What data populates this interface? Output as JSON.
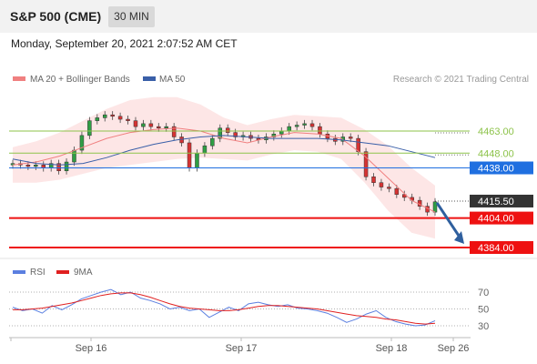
{
  "header": {
    "title": "S&P 500 (CME)",
    "timeframe": "30 MIN",
    "datetime": "Monday, September 20, 2021 2:07:52 AM CET"
  },
  "legend": {
    "ma20_label": "MA 20 + Bollinger Bands",
    "ma50_label": "MA 50",
    "credit": "Research © 2021 Trading Central",
    "rsi_label": "RSI",
    "ma9_label": "9MA"
  },
  "colors": {
    "ma20": "#f08080",
    "ma50": "#3a5fa8",
    "bollinger_fill": "#fde3e3",
    "resistance_green": "#8dc34a",
    "pivot_blue": "#1f6fe0",
    "support_red": "#ee1111",
    "last_price": "#333333",
    "arrow": "#2f5f9e",
    "rsi": "#5b7fe0",
    "rsi_ma9": "#e02020"
  },
  "chart_data": [
    {
      "type": "candlestick",
      "title": "",
      "x_ticks": [
        "Sep 16",
        "Sep 17",
        "Sep 18",
        "Sep 26"
      ],
      "series": [
        {
          "name": "MA 20 + Bollinger Bands",
          "values": [
            4440,
            4442,
            4446,
            4452,
            4458,
            4462,
            4464,
            4465,
            4463,
            4458,
            4455,
            4459,
            4462,
            4461,
            4458,
            4446,
            4431,
            4416,
            4408
          ]
        },
        {
          "name": "MA 50",
          "values": [
            4444,
            4441,
            4440,
            4441,
            4445,
            4450,
            4454,
            4457,
            4459,
            4460,
            4459,
            4458,
            4458,
            4458,
            4457,
            4455,
            4453,
            4449,
            4445
          ]
        }
      ],
      "closes": [
        4441,
        4440,
        4439,
        4440,
        4438,
        4441,
        4436,
        4442,
        4450,
        4460,
        4470,
        4472,
        4474,
        4473,
        4471,
        4470,
        4466,
        4468,
        4466,
        4465,
        4466,
        4459,
        4455,
        4438,
        4448,
        4453,
        4458,
        4465,
        4462,
        4459,
        4460,
        4458,
        4457,
        4459,
        4461,
        4463,
        4466,
        4467,
        4468,
        4466,
        4461,
        4458,
        4456,
        4459,
        4458,
        4449,
        4432,
        4428,
        4425,
        4424,
        4420,
        4418,
        4416,
        4412,
        4408,
        4415
      ],
      "levels": [
        {
          "value": 4463.0,
          "label": "4463.00",
          "kind": "resistance"
        },
        {
          "value": 4448.0,
          "label": "4448.00",
          "kind": "resistance"
        },
        {
          "value": 4438.0,
          "label": "4438.00",
          "kind": "pivot"
        },
        {
          "value": 4415.5,
          "label": "4415.50",
          "kind": "last"
        },
        {
          "value": 4404.0,
          "label": "4404.00",
          "kind": "support"
        },
        {
          "value": 4384.0,
          "label": "4384.00",
          "kind": "support"
        }
      ],
      "forecast_target": 4384.0
    },
    {
      "type": "line",
      "title": "",
      "ylim": [
        20,
        80
      ],
      "y_ticks": [
        "70",
        "50",
        "30"
      ],
      "series": [
        {
          "name": "RSI",
          "values": [
            52,
            48,
            50,
            45,
            54,
            49,
            55,
            62,
            66,
            70,
            73,
            67,
            70,
            63,
            60,
            56,
            50,
            52,
            48,
            50,
            40,
            46,
            52,
            48,
            56,
            58,
            55,
            53,
            55,
            51,
            50,
            48,
            45,
            40,
            34,
            38,
            44,
            48,
            40,
            35,
            32,
            30,
            31,
            36
          ]
        },
        {
          "name": "9MA",
          "values": [
            49,
            49,
            50,
            51,
            53,
            55,
            57,
            60,
            63,
            66,
            68,
            69,
            69,
            67,
            64,
            60,
            56,
            53,
            51,
            50,
            49,
            48,
            48,
            49,
            51,
            53,
            54,
            54,
            53,
            52,
            51,
            50,
            48,
            46,
            44,
            42,
            41,
            40,
            38,
            37,
            35,
            33,
            32,
            33
          ]
        }
      ]
    }
  ]
}
